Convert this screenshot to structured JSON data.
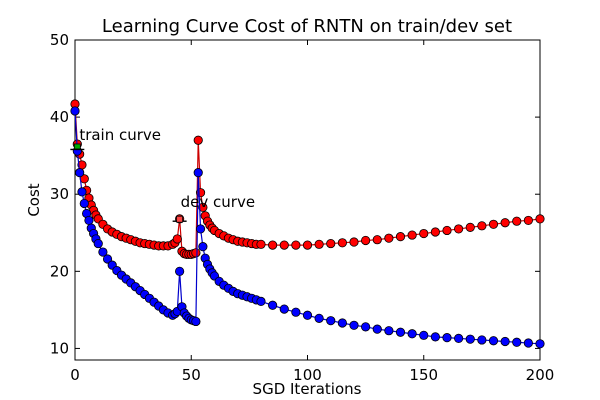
{
  "chart_data": {
    "type": "line",
    "title": "Learning Curve Cost of RNTN on train/dev set",
    "xlabel": "SGD Iterations",
    "ylabel": "Cost",
    "xlim": [
      0,
      200
    ],
    "ylim": [
      8.5,
      50
    ],
    "xticks": [
      0,
      50,
      100,
      150,
      200
    ],
    "yticks": [
      10,
      20,
      30,
      40,
      50
    ],
    "grid": false,
    "legend": "none",
    "annotations": [
      {
        "text": "train curve",
        "x": 1,
        "y": 36
      },
      {
        "text": "dev curve",
        "x": 45,
        "y": 26.5
      }
    ],
    "series": [
      {
        "color": "#cc0000",
        "marker_fill": "#ff0000",
        "points": [
          [
            0,
            41.7
          ],
          [
            1,
            36.5
          ],
          [
            2,
            35.2
          ],
          [
            3,
            33.8
          ],
          [
            4,
            32.0
          ],
          [
            5,
            30.5
          ],
          [
            6,
            29.5
          ],
          [
            7,
            28.6
          ],
          [
            8,
            27.9
          ],
          [
            9,
            27.3
          ],
          [
            10,
            26.8
          ],
          [
            12,
            26.1
          ],
          [
            14,
            25.5
          ],
          [
            16,
            25.1
          ],
          [
            18,
            24.8
          ],
          [
            20,
            24.5
          ],
          [
            22,
            24.3
          ],
          [
            24,
            24.1
          ],
          [
            26,
            23.9
          ],
          [
            28,
            23.7
          ],
          [
            30,
            23.6
          ],
          [
            32,
            23.5
          ],
          [
            34,
            23.4
          ],
          [
            36,
            23.3
          ],
          [
            38,
            23.3
          ],
          [
            40,
            23.3
          ],
          [
            42,
            23.5
          ],
          [
            43,
            23.7
          ],
          [
            44,
            24.2
          ],
          [
            45,
            26.8
          ],
          [
            46,
            22.6
          ],
          [
            47,
            22.3
          ],
          [
            48,
            22.2
          ],
          [
            49,
            22.2
          ],
          [
            50,
            22.2
          ],
          [
            51,
            22.3
          ],
          [
            52,
            22.4
          ],
          [
            53,
            37.0
          ],
          [
            54,
            30.2
          ],
          [
            55,
            28.3
          ],
          [
            56,
            27.2
          ],
          [
            57,
            26.5
          ],
          [
            58,
            26.0
          ],
          [
            59,
            25.6
          ],
          [
            60,
            25.3
          ],
          [
            62,
            24.9
          ],
          [
            64,
            24.6
          ],
          [
            66,
            24.3
          ],
          [
            68,
            24.1
          ],
          [
            70,
            23.9
          ],
          [
            72,
            23.8
          ],
          [
            74,
            23.7
          ],
          [
            76,
            23.6
          ],
          [
            78,
            23.5
          ],
          [
            80,
            23.5
          ],
          [
            85,
            23.4
          ],
          [
            90,
            23.4
          ],
          [
            95,
            23.4
          ],
          [
            100,
            23.4
          ],
          [
            105,
            23.5
          ],
          [
            110,
            23.6
          ],
          [
            115,
            23.7
          ],
          [
            120,
            23.8
          ],
          [
            125,
            24.0
          ],
          [
            130,
            24.1
          ],
          [
            135,
            24.3
          ],
          [
            140,
            24.5
          ],
          [
            145,
            24.7
          ],
          [
            150,
            24.9
          ],
          [
            155,
            25.1
          ],
          [
            160,
            25.3
          ],
          [
            165,
            25.5
          ],
          [
            170,
            25.7
          ],
          [
            175,
            25.9
          ],
          [
            180,
            26.1
          ],
          [
            185,
            26.3
          ],
          [
            190,
            26.5
          ],
          [
            195,
            26.6
          ],
          [
            200,
            26.8
          ]
        ]
      },
      {
        "color": "#0000cc",
        "marker_fill": "#0000ff",
        "points": [
          [
            0,
            40.8
          ],
          [
            1,
            35.6
          ],
          [
            2,
            32.8
          ],
          [
            3,
            30.3
          ],
          [
            4,
            28.8
          ],
          [
            5,
            27.5
          ],
          [
            6,
            26.6
          ],
          [
            7,
            25.6
          ],
          [
            8,
            24.9
          ],
          [
            9,
            24.2
          ],
          [
            10,
            23.6
          ],
          [
            12,
            22.5
          ],
          [
            14,
            21.6
          ],
          [
            16,
            20.8
          ],
          [
            18,
            20.1
          ],
          [
            20,
            19.5
          ],
          [
            22,
            19.0
          ],
          [
            24,
            18.5
          ],
          [
            26,
            18.0
          ],
          [
            28,
            17.5
          ],
          [
            30,
            17.0
          ],
          [
            32,
            16.5
          ],
          [
            34,
            16.0
          ],
          [
            36,
            15.5
          ],
          [
            38,
            15.0
          ],
          [
            40,
            14.6
          ],
          [
            42,
            14.3
          ],
          [
            43,
            14.5
          ],
          [
            44,
            14.8
          ],
          [
            45,
            20.0
          ],
          [
            46,
            15.4
          ],
          [
            47,
            14.6
          ],
          [
            48,
            14.2
          ],
          [
            49,
            13.9
          ],
          [
            50,
            13.7
          ],
          [
            51,
            13.6
          ],
          [
            52,
            13.5
          ],
          [
            53,
            32.8
          ],
          [
            54,
            25.5
          ],
          [
            55,
            23.2
          ],
          [
            56,
            21.7
          ],
          [
            57,
            20.9
          ],
          [
            58,
            20.3
          ],
          [
            59,
            19.8
          ],
          [
            60,
            19.4
          ],
          [
            62,
            18.7
          ],
          [
            64,
            18.2
          ],
          [
            66,
            17.8
          ],
          [
            68,
            17.4
          ],
          [
            70,
            17.1
          ],
          [
            72,
            16.9
          ],
          [
            74,
            16.7
          ],
          [
            76,
            16.5
          ],
          [
            78,
            16.3
          ],
          [
            80,
            16.1
          ],
          [
            85,
            15.6
          ],
          [
            90,
            15.1
          ],
          [
            95,
            14.7
          ],
          [
            100,
            14.3
          ],
          [
            105,
            13.9
          ],
          [
            110,
            13.6
          ],
          [
            115,
            13.3
          ],
          [
            120,
            13.0
          ],
          [
            125,
            12.8
          ],
          [
            130,
            12.5
          ],
          [
            135,
            12.3
          ],
          [
            140,
            12.1
          ],
          [
            145,
            11.9
          ],
          [
            150,
            11.7
          ],
          [
            155,
            11.5
          ],
          [
            160,
            11.4
          ],
          [
            165,
            11.3
          ],
          [
            170,
            11.2
          ],
          [
            175,
            11.1
          ],
          [
            180,
            11.0
          ],
          [
            185,
            10.9
          ],
          [
            190,
            10.8
          ],
          [
            195,
            10.7
          ],
          [
            200,
            10.6
          ]
        ]
      }
    ]
  }
}
